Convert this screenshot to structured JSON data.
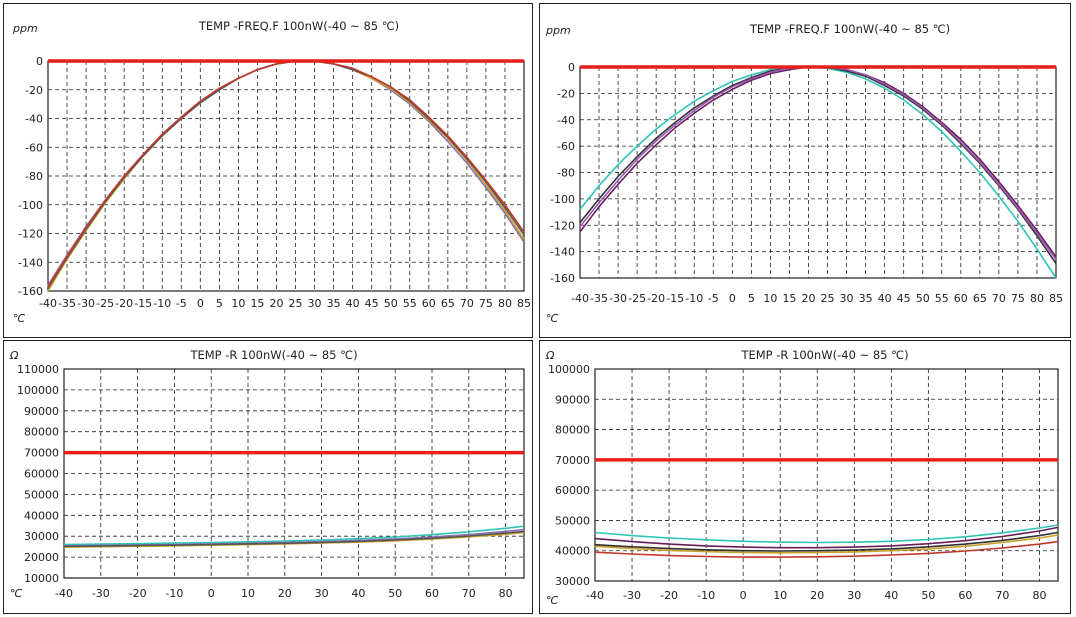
{
  "chart_data": [
    {
      "type": "line",
      "title": "TEMP -FREQ.F 100nW(-40 ~ 85 ℃)",
      "ylabel": "ppm",
      "xlabel": "℃",
      "xlim": [
        -40,
        85
      ],
      "ylim": [
        -160,
        0
      ],
      "xticks": [
        "-40",
        "-35",
        "-30",
        "-25",
        "-20",
        "-15",
        "-10",
        "-5",
        "0",
        "5",
        "10",
        "15",
        "20",
        "25",
        "30",
        "35",
        "40",
        "45",
        "50",
        "55",
        "60",
        "65",
        "70",
        "75",
        "80",
        "85"
      ],
      "yticks": [
        "0",
        "-20",
        "-40",
        "-60",
        "-80",
        "-100",
        "-120",
        "-140",
        "-160"
      ],
      "grid": true,
      "reference_line": {
        "y": 0,
        "color": "#e8201c"
      },
      "series": [
        {
          "color": "#8a6fb0",
          "x": [
            -40,
            -35,
            -30,
            -25,
            -20,
            -15,
            -10,
            -5,
            0,
            5,
            10,
            15,
            20,
            25,
            30,
            35,
            40,
            45,
            50,
            55,
            60,
            65,
            70,
            75,
            80,
            85
          ],
          "values": [
            -156,
            -135,
            -115,
            -97,
            -80,
            -65,
            -51,
            -39,
            -28,
            -19,
            -12,
            -6,
            -2,
            0,
            0,
            -2,
            -6,
            -12,
            -20,
            -30,
            -42,
            -56,
            -71,
            -88,
            -106,
            -126
          ]
        },
        {
          "color": "#c9a227",
          "x": [
            -40,
            -35,
            -30,
            -25,
            -20,
            -15,
            -10,
            -5,
            0,
            5,
            10,
            15,
            20,
            25,
            30,
            35,
            40,
            45,
            50,
            55,
            60,
            65,
            70,
            75,
            80,
            85
          ],
          "values": [
            -160,
            -138,
            -118,
            -99,
            -82,
            -66,
            -52,
            -40,
            -29,
            -20,
            -12,
            -6,
            -2,
            0,
            0,
            -2,
            -6,
            -12,
            -19,
            -29,
            -41,
            -54,
            -69,
            -86,
            -104,
            -124
          ]
        },
        {
          "color": "#555555",
          "x": [
            -40,
            -35,
            -30,
            -25,
            -20,
            -15,
            -10,
            -5,
            0,
            5,
            10,
            15,
            20,
            25,
            30,
            35,
            40,
            45,
            50,
            55,
            60,
            65,
            70,
            75,
            80,
            85
          ],
          "values": [
            -158,
            -137,
            -117,
            -98,
            -81,
            -66,
            -52,
            -40,
            -29,
            -20,
            -12,
            -6,
            -2,
            0,
            0,
            -2,
            -6,
            -11,
            -18,
            -28,
            -40,
            -53,
            -68,
            -84,
            -102,
            -121
          ]
        },
        {
          "color": "#c0392b",
          "x": [
            -40,
            -35,
            -30,
            -25,
            -20,
            -15,
            -10,
            -5,
            0,
            5,
            10,
            15,
            20,
            25,
            30,
            35,
            40,
            45,
            50,
            55,
            60,
            65,
            70,
            75,
            80,
            85
          ],
          "values": [
            -157,
            -136,
            -116,
            -97,
            -80,
            -65,
            -51,
            -39,
            -28,
            -19,
            -12,
            -6,
            -2,
            0,
            0,
            -2,
            -5,
            -11,
            -18,
            -27,
            -39,
            -52,
            -67,
            -83,
            -100,
            -119
          ]
        }
      ]
    },
    {
      "type": "line",
      "title": "TEMP -FREQ.F 100nW(-40 ~ 85 ℃)",
      "ylabel": "ppm",
      "xlabel": "℃",
      "xlim": [
        -40,
        85
      ],
      "ylim": [
        -160,
        0
      ],
      "xticks": [
        "-40",
        "-35",
        "-30",
        "-25",
        "-20",
        "-15",
        "-10",
        "-5",
        "0",
        "5",
        "10",
        "15",
        "20",
        "25",
        "30",
        "35",
        "40",
        "45",
        "50",
        "55",
        "60",
        "65",
        "70",
        "75",
        "80",
        "85"
      ],
      "yticks": [
        "0",
        "-20",
        "-40",
        "-60",
        "-80",
        "-100",
        "-120",
        "-140",
        "-160"
      ],
      "grid": true,
      "reference_line": {
        "y": 0,
        "color": "#e8201c"
      },
      "series": [
        {
          "color": "#2ec4b6",
          "x": [
            -40,
            -35,
            -30,
            -25,
            -20,
            -15,
            -10,
            -5,
            0,
            5,
            10,
            15,
            20,
            25,
            30,
            35,
            40,
            45,
            50,
            55,
            60,
            65,
            70,
            75,
            80,
            85
          ],
          "values": [
            -108,
            -90,
            -74,
            -60,
            -47,
            -36,
            -26,
            -18,
            -11,
            -6,
            -2,
            0,
            0,
            -1,
            -4,
            -9,
            -16,
            -25,
            -36,
            -49,
            -64,
            -80,
            -98,
            -117,
            -138,
            -160
          ]
        },
        {
          "color": "#6b1d5a",
          "x": [
            -40,
            -35,
            -30,
            -25,
            -20,
            -15,
            -10,
            -5,
            0,
            5,
            10,
            15,
            20,
            25,
            30,
            35,
            40,
            45,
            50,
            55,
            60,
            65,
            70,
            75,
            80,
            85
          ],
          "values": [
            -125,
            -106,
            -89,
            -73,
            -59,
            -46,
            -35,
            -25,
            -17,
            -10,
            -5,
            -2,
            0,
            0,
            -2,
            -6,
            -12,
            -20,
            -30,
            -42,
            -55,
            -70,
            -87,
            -105,
            -124,
            -144
          ]
        },
        {
          "color": "#333333",
          "x": [
            -40,
            -35,
            -30,
            -25,
            -20,
            -15,
            -10,
            -5,
            0,
            5,
            10,
            15,
            20,
            25,
            30,
            35,
            40,
            45,
            50,
            55,
            60,
            65,
            70,
            75,
            80,
            85
          ],
          "values": [
            -118,
            -100,
            -83,
            -68,
            -54,
            -42,
            -31,
            -22,
            -14,
            -8,
            -3,
            -1,
            0,
            0,
            -3,
            -7,
            -14,
            -22,
            -32,
            -44,
            -58,
            -73,
            -90,
            -108,
            -128,
            -149
          ]
        },
        {
          "color": "#9b59b6",
          "x": [
            -40,
            -35,
            -30,
            -25,
            -20,
            -15,
            -10,
            -5,
            0,
            5,
            10,
            15,
            20,
            25,
            30,
            35,
            40,
            45,
            50,
            55,
            60,
            65,
            70,
            75,
            80,
            85
          ],
          "values": [
            -121,
            -103,
            -86,
            -70,
            -56,
            -44,
            -33,
            -23,
            -15,
            -9,
            -4,
            -1,
            0,
            0,
            -2,
            -6,
            -13,
            -21,
            -31,
            -43,
            -57,
            -72,
            -89,
            -107,
            -126,
            -146
          ]
        }
      ]
    },
    {
      "type": "line",
      "title": "TEMP -R 100nW(-40 ~ 85 ℃)",
      "ylabel": "Ω",
      "xlabel": "℃",
      "xlim": [
        -40,
        85
      ],
      "ylim": [
        10000,
        110000
      ],
      "xticks": [
        "-40",
        "-30",
        "-20",
        "-10",
        "0",
        "10",
        "20",
        "30",
        "40",
        "50",
        "60",
        "70",
        "80"
      ],
      "xtick_values": [
        -40,
        -30,
        -20,
        -10,
        0,
        10,
        20,
        30,
        40,
        50,
        60,
        70,
        80
      ],
      "yticks": [
        "110000",
        "100000",
        "90000",
        "80000",
        "70000",
        "60000",
        "50000",
        "40000",
        "30000",
        "20000",
        "10000"
      ],
      "grid": true,
      "reference_line": {
        "y": 70000,
        "color": "#e8201c"
      },
      "series": [
        {
          "color": "#2ec4b6",
          "x": [
            -40,
            -30,
            -20,
            -10,
            0,
            10,
            20,
            30,
            40,
            50,
            60,
            70,
            80,
            85
          ],
          "values": [
            26000,
            26200,
            26400,
            26700,
            27000,
            27300,
            27700,
            28200,
            28800,
            29600,
            30700,
            32100,
            33800,
            34800
          ]
        },
        {
          "color": "#8a6fb0",
          "x": [
            -40,
            -30,
            -20,
            -10,
            0,
            10,
            20,
            30,
            40,
            50,
            60,
            70,
            80,
            85
          ],
          "values": [
            25400,
            25600,
            25800,
            26000,
            26300,
            26600,
            27000,
            27400,
            28000,
            28700,
            29600,
            30800,
            32300,
            33200
          ]
        },
        {
          "color": "#c9a227",
          "x": [
            -40,
            -30,
            -20,
            -10,
            0,
            10,
            20,
            30,
            40,
            50,
            60,
            70,
            80,
            85
          ],
          "values": [
            24800,
            25000,
            25200,
            25400,
            25700,
            26000,
            26300,
            26700,
            27200,
            27800,
            28600,
            29600,
            30900,
            31700
          ]
        },
        {
          "color": "#555555",
          "x": [
            -40,
            -30,
            -20,
            -10,
            0,
            10,
            20,
            30,
            40,
            50,
            60,
            70,
            80,
            85
          ],
          "values": [
            25100,
            25300,
            25500,
            25700,
            26000,
            26300,
            26600,
            27000,
            27500,
            28200,
            29000,
            30100,
            31500,
            32300
          ]
        }
      ]
    },
    {
      "type": "line",
      "title": "TEMP -R 100nW(-40 ~ 85 ℃)",
      "ylabel": "Ω",
      "xlabel": "℃",
      "xlim": [
        -40,
        85
      ],
      "ylim": [
        30000,
        100000
      ],
      "xticks": [
        "-40",
        "-30",
        "-20",
        "-10",
        "0",
        "10",
        "20",
        "30",
        "40",
        "50",
        "60",
        "70",
        "80"
      ],
      "xtick_values": [
        -40,
        -30,
        -20,
        -10,
        0,
        10,
        20,
        30,
        40,
        50,
        60,
        70,
        80
      ],
      "yticks": [
        "100000",
        "90000",
        "80000",
        "70000",
        "60000",
        "50000",
        "40000",
        "30000"
      ],
      "grid": true,
      "reference_line": {
        "y": 70000,
        "color": "#e8201c"
      },
      "series": [
        {
          "color": "#2ec4b6",
          "x": [
            -40,
            -30,
            -20,
            -10,
            0,
            10,
            20,
            30,
            40,
            50,
            60,
            70,
            80,
            85
          ],
          "values": [
            46000,
            45000,
            44200,
            43600,
            43100,
            42800,
            42700,
            42800,
            43100,
            43700,
            44600,
            45900,
            47500,
            48500
          ]
        },
        {
          "color": "#6b1d5a",
          "x": [
            -40,
            -30,
            -20,
            -10,
            0,
            10,
            20,
            30,
            40,
            50,
            60,
            70,
            80,
            85
          ],
          "values": [
            44000,
            43000,
            42200,
            41600,
            41200,
            41000,
            41000,
            41200,
            41600,
            42300,
            43300,
            44700,
            46500,
            47700
          ]
        },
        {
          "color": "#c9a227",
          "x": [
            -40,
            -30,
            -20,
            -10,
            0,
            10,
            20,
            30,
            40,
            50,
            60,
            70,
            80,
            85
          ],
          "values": [
            41500,
            40700,
            40100,
            39700,
            39400,
            39300,
            39400,
            39600,
            40000,
            40600,
            41500,
            42700,
            44200,
            45200
          ]
        },
        {
          "color": "#c0392b",
          "x": [
            -40,
            -30,
            -20,
            -10,
            0,
            10,
            20,
            30,
            40,
            50,
            60,
            70,
            80,
            85
          ],
          "values": [
            39500,
            38900,
            38400,
            38100,
            37900,
            37900,
            38000,
            38200,
            38600,
            39100,
            39900,
            40900,
            42200,
            43000
          ]
        },
        {
          "color": "#333333",
          "x": [
            -40,
            -30,
            -20,
            -10,
            0,
            10,
            20,
            30,
            40,
            50,
            60,
            70,
            80,
            85
          ],
          "values": [
            42000,
            41300,
            40700,
            40300,
            40000,
            39900,
            40000,
            40200,
            40600,
            41300,
            42200,
            43400,
            45000,
            46000
          ]
        }
      ]
    }
  ]
}
